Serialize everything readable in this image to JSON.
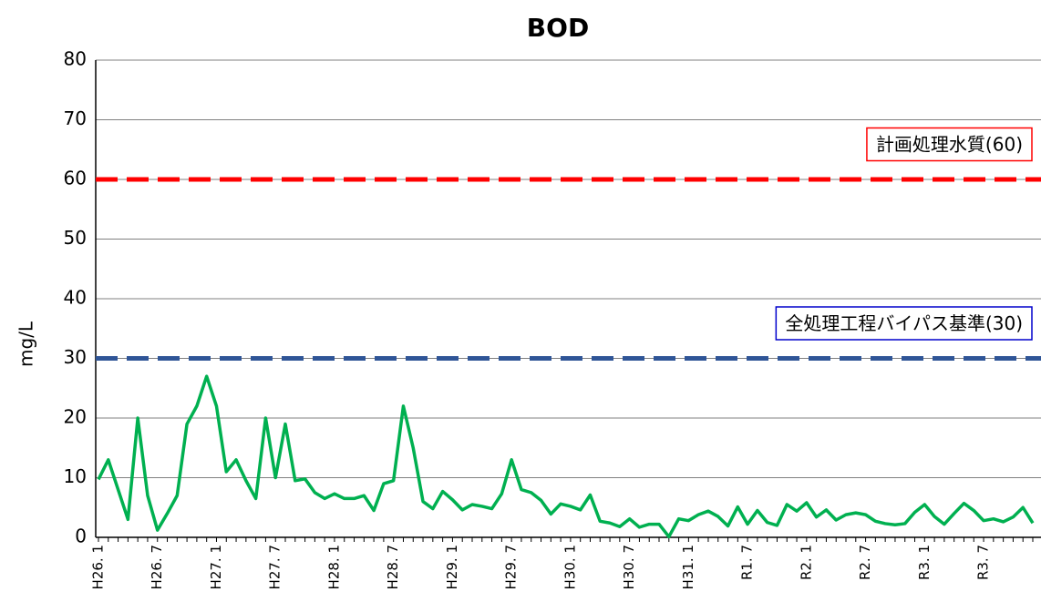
{
  "chart_data": {
    "type": "line",
    "title": "BOD",
    "y_label": "mg/L",
    "categories": [
      "H26. 1",
      null,
      null,
      null,
      null,
      null,
      "H26. 7",
      null,
      null,
      null,
      null,
      null,
      "H27. 1",
      null,
      null,
      null,
      null,
      null,
      "H27. 7",
      null,
      null,
      null,
      null,
      null,
      "H28. 1",
      null,
      null,
      null,
      null,
      null,
      "H28. 7",
      null,
      null,
      null,
      null,
      null,
      "H29. 1",
      null,
      null,
      null,
      null,
      null,
      "H29. 7",
      null,
      null,
      null,
      null,
      null,
      "H30. 1",
      null,
      null,
      null,
      null,
      null,
      "H30. 7",
      null,
      null,
      null,
      null,
      null,
      "H31. 1",
      null,
      null,
      null,
      null,
      null,
      "R1. 7",
      null,
      null,
      null,
      null,
      null,
      "R2. 1",
      null,
      null,
      null,
      null,
      null,
      "R2. 7",
      null,
      null,
      null,
      null,
      null,
      "R3. 1",
      null,
      null,
      null,
      null,
      null,
      "R3. 7",
      null,
      null,
      null,
      null,
      null
    ],
    "series": [
      {
        "color": "#00b050",
        "values": [
          9.7,
          13,
          8,
          3,
          20,
          7,
          1.2,
          4,
          7,
          19,
          22,
          27,
          22,
          11,
          13,
          9.5,
          6.5,
          20,
          10,
          19,
          9.5,
          9.8,
          7.5,
          6.5,
          7.3,
          6.5,
          6.5,
          7,
          4.5,
          9,
          9.5,
          22,
          15,
          6,
          4.8,
          7.7,
          6.3,
          4.6,
          5.5,
          5.2,
          4.8,
          7.3,
          13,
          8,
          7.5,
          6.2,
          3.9,
          5.6,
          5.2,
          4.6,
          7.1,
          2.7,
          2.4,
          1.8,
          3.1,
          1.7,
          2.2,
          2.2,
          0.1,
          3.1,
          2.8,
          3.8,
          4.4,
          3.5,
          1.9,
          5.1,
          2.2,
          4.5,
          2.5,
          2,
          5.5,
          4.4,
          5.8,
          3.4,
          4.6,
          2.9,
          3.8,
          4.1,
          3.8,
          2.7,
          2.3,
          2.1,
          2.3,
          4.2,
          5.5,
          3.5,
          2.2,
          4,
          5.7,
          4.5,
          2.8,
          3.1,
          2.6,
          3.4,
          5,
          2.4
        ]
      }
    ],
    "reference_lines": [
      {
        "value": 60,
        "label": "計画処理水質(60)",
        "color": "#ff0000"
      },
      {
        "value": 30,
        "label": "全処理工程バイパス基準(30)",
        "color": "#2f5597",
        "box_color": "#0000cc"
      }
    ],
    "ylim": [
      0,
      80
    ],
    "yticks": [
      0,
      10,
      20,
      30,
      40,
      50,
      60,
      70,
      80
    ],
    "grid": true
  }
}
